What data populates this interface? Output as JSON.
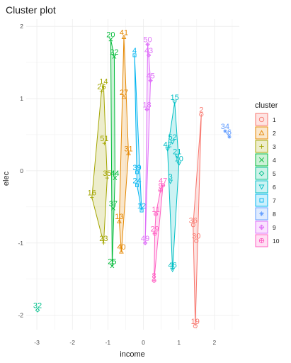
{
  "chart_data": {
    "type": "scatter",
    "title": "Cluster plot",
    "xlabel": "income",
    "ylabel": "elec",
    "xlim": [
      -3.3,
      2.7
    ],
    "ylim": [
      -2.2,
      2.1
    ],
    "x_ticks": [
      -3,
      -2,
      -1,
      0,
      1,
      2
    ],
    "y_ticks": [
      -2,
      -1,
      0,
      1,
      2
    ],
    "grid": true,
    "legend": {
      "title": "cluster",
      "position": "right"
    },
    "series": [
      {
        "name": "1",
        "color": "#F8766D",
        "symbol": "circle",
        "points": [
          {
            "label": "2",
            "x": 1.63,
            "y": 0.78
          },
          {
            "label": "36",
            "x": 1.4,
            "y": -0.75
          },
          {
            "label": "30",
            "x": 1.49,
            "y": -0.97
          },
          {
            "label": "19",
            "x": 1.46,
            "y": -2.15
          }
        ]
      },
      {
        "name": "2",
        "color": "#E58700",
        "symbol": "triangle",
        "points": [
          {
            "label": "41",
            "x": -0.55,
            "y": 1.85
          },
          {
            "label": "27",
            "x": -0.55,
            "y": 1.02
          },
          {
            "label": "31",
            "x": -0.42,
            "y": 0.24
          },
          {
            "label": "13",
            "x": -0.68,
            "y": -0.7
          },
          {
            "label": "40",
            "x": -0.62,
            "y": -1.12
          }
        ]
      },
      {
        "name": "3",
        "color": "#A3A500",
        "symbol": "plus",
        "points": [
          {
            "label": "14",
            "x": -1.12,
            "y": 1.17
          },
          {
            "label": "26",
            "x": -1.18,
            "y": 1.1
          },
          {
            "label": "51",
            "x": -1.1,
            "y": 0.38
          },
          {
            "label": "35",
            "x": -1.02,
            "y": -0.1
          },
          {
            "label": "16",
            "x": -1.45,
            "y": -0.37
          },
          {
            "label": "23",
            "x": -1.12,
            "y": -1.0
          }
        ]
      },
      {
        "name": "4",
        "color": "#00BA38",
        "symbol": "cross",
        "points": [
          {
            "label": "20",
            "x": -0.92,
            "y": 1.82
          },
          {
            "label": "22",
            "x": -0.82,
            "y": 1.58
          },
          {
            "label": "44",
            "x": -0.8,
            "y": -0.1
          },
          {
            "label": "37",
            "x": -0.85,
            "y": -0.52
          },
          {
            "label": "25",
            "x": -0.88,
            "y": -1.32
          }
        ]
      },
      {
        "name": "5",
        "color": "#00C08B",
        "symbol": "diamond",
        "points": [
          {
            "label": "32",
            "x": -2.98,
            "y": -1.93
          }
        ]
      },
      {
        "name": "6",
        "color": "#00BFC4",
        "symbol": "triangle-down",
        "points": [
          {
            "label": "15",
            "x": 0.88,
            "y": 0.95
          },
          {
            "label": "52",
            "x": 0.82,
            "y": 0.4
          },
          {
            "label": "42",
            "x": 0.68,
            "y": 0.3
          },
          {
            "label": "21",
            "x": 0.95,
            "y": 0.2
          },
          {
            "label": "10",
            "x": 1.0,
            "y": 0.1
          },
          {
            "label": "3",
            "x": 0.76,
            "y": -0.15
          },
          {
            "label": "46",
            "x": 0.82,
            "y": -1.37
          }
        ]
      },
      {
        "name": "7",
        "color": "#00B4F0",
        "symbol": "square",
        "points": [
          {
            "label": "4",
            "x": -0.25,
            "y": 1.6
          },
          {
            "label": "39",
            "x": -0.18,
            "y": -0.02
          },
          {
            "label": "24",
            "x": -0.18,
            "y": -0.2
          },
          {
            "label": "12",
            "x": -0.05,
            "y": -0.55
          }
        ]
      },
      {
        "name": "8",
        "color": "#619CFF",
        "symbol": "asterisk",
        "points": [
          {
            "label": "34",
            "x": 2.3,
            "y": 0.55
          },
          {
            "label": "6",
            "x": 2.42,
            "y": 0.47
          }
        ]
      },
      {
        "name": "9",
        "color": "#DF70F8",
        "symbol": "diamond-plus",
        "points": [
          {
            "label": "50",
            "x": 0.12,
            "y": 1.75
          },
          {
            "label": "43",
            "x": 0.15,
            "y": 1.6
          },
          {
            "label": "45",
            "x": 0.2,
            "y": 1.25
          },
          {
            "label": "18",
            "x": 0.1,
            "y": 0.85
          },
          {
            "label": "49",
            "x": 0.05,
            "y": -1.0
          }
        ]
      },
      {
        "name": "10",
        "color": "#FF61C3",
        "symbol": "circle-plus",
        "points": [
          {
            "label": "47",
            "x": 0.55,
            "y": -0.2
          },
          {
            "label": "9",
            "x": 0.48,
            "y": -0.27
          },
          {
            "label": "11",
            "x": 0.35,
            "y": -0.6
          },
          {
            "label": "29",
            "x": 0.32,
            "y": -0.87
          },
          {
            "label": "8",
            "x": 0.3,
            "y": -1.52
          }
        ]
      }
    ]
  }
}
